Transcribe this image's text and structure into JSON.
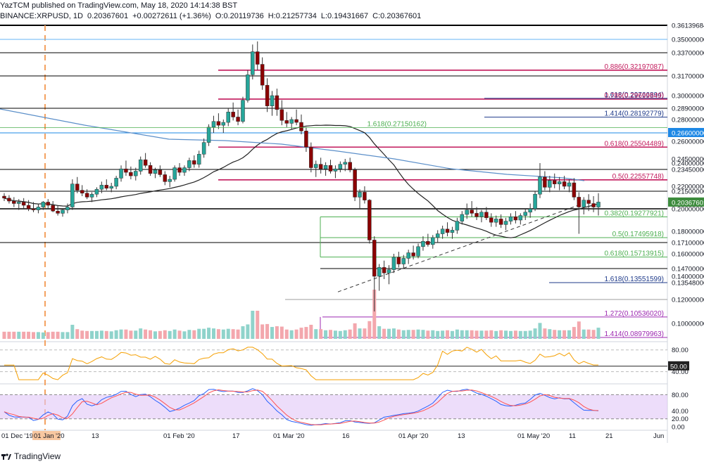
{
  "header": {
    "line1": "YazTCM published on TradingView.com, May 18, 2020 14:14:38 BST",
    "symbol": "BINANCE:XRPUSD, 1D",
    "last": "0.20367601",
    "change": "+0.00272611 (+1.36%)",
    "o": "O:0.20119736",
    "h": "H:0.21257734",
    "l": "L:0.19431667",
    "c": "C:0.20367601"
  },
  "footer": {
    "brand": "TradingView"
  },
  "colors": {
    "up": "#26a69a",
    "down": "#8b0000",
    "fibRed": "#c2185b",
    "fibGreen": "#4caf50",
    "fibBlue": "#1e3a8a",
    "rsi": "#f59f00",
    "stochK": "#2962ff",
    "stochD": "#ff5252",
    "stochBg": "#e1c6f7"
  },
  "chart_data": {
    "type": "candlestick",
    "price_axis": {
      "range": [
        0.09,
        0.365
      ],
      "ticks": [
        "0.35000000",
        "0.33700000",
        "0.31700000",
        "0.30000000",
        "0.28900000",
        "0.28000000",
        "0.26600000",
        "0.26000000",
        "0.24500000",
        "0.24000000",
        "0.23450000",
        "0.22000000",
        "0.21500000",
        "0.20367601",
        "0.20000000",
        "0.18000000",
        "0.17100000",
        "0.16000000",
        "0.14700000",
        "0.14000000",
        "0.13548006",
        "0.12000000",
        "0.10000000",
        "0.36139684"
      ]
    },
    "time_axis": [
      "01 Dec '19",
      "01 Jan '20",
      "13",
      "01 Feb '20",
      "17",
      "01 Mar '20",
      "16",
      "01 Apr '20",
      "13",
      "01 May '20",
      "11",
      "21",
      "Jun"
    ],
    "horizontal_levels": [
      {
        "value": 0.35,
        "color": "#64b5f6"
      },
      {
        "value": 0.337,
        "color": "#000000"
      },
      {
        "value": 0.317,
        "color": "#000000"
      },
      {
        "value": 0.289,
        "color": "#000000"
      },
      {
        "value": 0.266,
        "color": "#1e88e5"
      },
      {
        "value": 0.2345,
        "color": "#000000"
      },
      {
        "value": 0.215,
        "color": "#000000"
      },
      {
        "value": 0.2,
        "color": "#000000"
      },
      {
        "value": 0.171,
        "color": "#000000"
      },
      {
        "value": 0.147,
        "color": "#000000"
      },
      {
        "value": 0.12,
        "color": "#9e9e9e"
      }
    ],
    "fib_levels": [
      {
        "ratio": "0.886",
        "value": "0.32197087",
        "color": "#c2185b"
      },
      {
        "ratio": "1.618",
        "value": "0.29766894",
        "color": "#1e3a8a"
      },
      {
        "ratio": "0.786",
        "value": "0.29699849",
        "color": "#c2185b"
      },
      {
        "ratio": "1.414",
        "value": "0.28192779",
        "color": "#1e3a8a"
      },
      {
        "ratio": "1.618",
        "value": "0.27150162",
        "color": "#4caf50"
      },
      {
        "ratio": "0.618",
        "value": "0.25504489",
        "color": "#c2185b"
      },
      {
        "ratio": "0.5",
        "value": "0.22557748",
        "color": "#c2185b"
      },
      {
        "ratio": "0.382",
        "value": "0.19277921",
        "color": "#4caf50"
      },
      {
        "ratio": "0.5",
        "value": "0.17495918",
        "color": "#4caf50"
      },
      {
        "ratio": "0.618",
        "value": "0.15713915",
        "color": "#4caf50"
      },
      {
        "ratio": "1.618",
        "value": "0.13551599",
        "color": "#1e3a8a"
      },
      {
        "ratio": "1.272",
        "value": "0.10536020",
        "color": "#9c27b0"
      },
      {
        "ratio": "1.414",
        "value": "0.08979963",
        "color": "#9c27b0"
      }
    ],
    "candles": [
      [
        0.21,
        0.213,
        0.205,
        0.208
      ],
      [
        0.208,
        0.211,
        0.203,
        0.205
      ],
      [
        0.205,
        0.209,
        0.201,
        0.203
      ],
      [
        0.203,
        0.207,
        0.199,
        0.204
      ],
      [
        0.204,
        0.208,
        0.2,
        0.202
      ],
      [
        0.202,
        0.206,
        0.198,
        0.2
      ],
      [
        0.2,
        0.204,
        0.197,
        0.199
      ],
      [
        0.199,
        0.203,
        0.196,
        0.201
      ],
      [
        0.201,
        0.205,
        0.199,
        0.204
      ],
      [
        0.204,
        0.207,
        0.2,
        0.202
      ],
      [
        0.202,
        0.205,
        0.197,
        0.198
      ],
      [
        0.198,
        0.202,
        0.194,
        0.196
      ],
      [
        0.196,
        0.2,
        0.193,
        0.199
      ],
      [
        0.199,
        0.203,
        0.196,
        0.201
      ],
      [
        0.201,
        0.226,
        0.199,
        0.222
      ],
      [
        0.222,
        0.228,
        0.213,
        0.216
      ],
      [
        0.216,
        0.221,
        0.21,
        0.213
      ],
      [
        0.213,
        0.217,
        0.207,
        0.209
      ],
      [
        0.209,
        0.214,
        0.204,
        0.212
      ],
      [
        0.212,
        0.219,
        0.209,
        0.217
      ],
      [
        0.217,
        0.224,
        0.213,
        0.221
      ],
      [
        0.221,
        0.226,
        0.216,
        0.218
      ],
      [
        0.218,
        0.223,
        0.214,
        0.22
      ],
      [
        0.22,
        0.229,
        0.217,
        0.227
      ],
      [
        0.227,
        0.238,
        0.224,
        0.235
      ],
      [
        0.235,
        0.243,
        0.229,
        0.232
      ],
      [
        0.232,
        0.237,
        0.226,
        0.229
      ],
      [
        0.229,
        0.236,
        0.225,
        0.233
      ],
      [
        0.233,
        0.247,
        0.23,
        0.244
      ],
      [
        0.244,
        0.25,
        0.236,
        0.238
      ],
      [
        0.238,
        0.241,
        0.229,
        0.231
      ],
      [
        0.231,
        0.236,
        0.227,
        0.234
      ],
      [
        0.234,
        0.238,
        0.228,
        0.23
      ],
      [
        0.23,
        0.233,
        0.221,
        0.224
      ],
      [
        0.224,
        0.229,
        0.219,
        0.226
      ],
      [
        0.226,
        0.238,
        0.224,
        0.236
      ],
      [
        0.236,
        0.24,
        0.229,
        0.232
      ],
      [
        0.232,
        0.238,
        0.229,
        0.236
      ],
      [
        0.236,
        0.246,
        0.233,
        0.243
      ],
      [
        0.243,
        0.248,
        0.236,
        0.239
      ],
      [
        0.239,
        0.252,
        0.236,
        0.249
      ],
      [
        0.249,
        0.262,
        0.246,
        0.259
      ],
      [
        0.259,
        0.275,
        0.256,
        0.272
      ],
      [
        0.272,
        0.283,
        0.266,
        0.278
      ],
      [
        0.278,
        0.285,
        0.27,
        0.274
      ],
      [
        0.274,
        0.28,
        0.266,
        0.277
      ],
      [
        0.277,
        0.289,
        0.273,
        0.286
      ],
      [
        0.286,
        0.294,
        0.279,
        0.282
      ],
      [
        0.282,
        0.288,
        0.274,
        0.278
      ],
      [
        0.278,
        0.299,
        0.276,
        0.296
      ],
      [
        0.296,
        0.322,
        0.294,
        0.318
      ],
      [
        0.318,
        0.345,
        0.314,
        0.338
      ],
      [
        0.338,
        0.348,
        0.322,
        0.327
      ],
      [
        0.327,
        0.333,
        0.305,
        0.309
      ],
      [
        0.309,
        0.315,
        0.286,
        0.291
      ],
      [
        0.291,
        0.304,
        0.283,
        0.3
      ],
      [
        0.3,
        0.306,
        0.283,
        0.288
      ],
      [
        0.288,
        0.296,
        0.274,
        0.279
      ],
      [
        0.279,
        0.286,
        0.272,
        0.276
      ],
      [
        0.276,
        0.282,
        0.27,
        0.28
      ],
      [
        0.28,
        0.288,
        0.274,
        0.277
      ],
      [
        0.277,
        0.284,
        0.265,
        0.268
      ],
      [
        0.268,
        0.272,
        0.251,
        0.255
      ],
      [
        0.255,
        0.259,
        0.232,
        0.236
      ],
      [
        0.236,
        0.243,
        0.228,
        0.239
      ],
      [
        0.239,
        0.246,
        0.231,
        0.235
      ],
      [
        0.235,
        0.241,
        0.229,
        0.238
      ],
      [
        0.238,
        0.244,
        0.231,
        0.233
      ],
      [
        0.233,
        0.238,
        0.227,
        0.235
      ],
      [
        0.235,
        0.242,
        0.232,
        0.239
      ],
      [
        0.239,
        0.245,
        0.233,
        0.241
      ],
      [
        0.241,
        0.246,
        0.232,
        0.234
      ],
      [
        0.234,
        0.236,
        0.205,
        0.209
      ],
      [
        0.209,
        0.217,
        0.2,
        0.214
      ],
      [
        0.214,
        0.22,
        0.203,
        0.206
      ],
      [
        0.206,
        0.207,
        0.17,
        0.173
      ],
      [
        0.173,
        0.176,
        0.11,
        0.14
      ],
      [
        0.14,
        0.151,
        0.128,
        0.148
      ],
      [
        0.148,
        0.154,
        0.138,
        0.143
      ],
      [
        0.143,
        0.15,
        0.134,
        0.146
      ],
      [
        0.146,
        0.16,
        0.143,
        0.157
      ],
      [
        0.157,
        0.162,
        0.148,
        0.151
      ],
      [
        0.151,
        0.159,
        0.147,
        0.156
      ],
      [
        0.156,
        0.164,
        0.151,
        0.161
      ],
      [
        0.161,
        0.168,
        0.155,
        0.158
      ],
      [
        0.158,
        0.17,
        0.156,
        0.167
      ],
      [
        0.167,
        0.176,
        0.163,
        0.172
      ],
      [
        0.172,
        0.178,
        0.167,
        0.169
      ],
      [
        0.169,
        0.177,
        0.165,
        0.175
      ],
      [
        0.175,
        0.181,
        0.171,
        0.178
      ],
      [
        0.178,
        0.185,
        0.174,
        0.182
      ],
      [
        0.182,
        0.188,
        0.176,
        0.179
      ],
      [
        0.179,
        0.184,
        0.174,
        0.181
      ],
      [
        0.181,
        0.192,
        0.178,
        0.189
      ],
      [
        0.189,
        0.198,
        0.186,
        0.195
      ],
      [
        0.195,
        0.203,
        0.191,
        0.199
      ],
      [
        0.199,
        0.205,
        0.193,
        0.196
      ],
      [
        0.196,
        0.201,
        0.19,
        0.193
      ],
      [
        0.193,
        0.199,
        0.188,
        0.197
      ],
      [
        0.197,
        0.201,
        0.19,
        0.192
      ],
      [
        0.192,
        0.196,
        0.184,
        0.188
      ],
      [
        0.188,
        0.194,
        0.184,
        0.191
      ],
      [
        0.191,
        0.195,
        0.183,
        0.186
      ],
      [
        0.186,
        0.192,
        0.181,
        0.189
      ],
      [
        0.189,
        0.196,
        0.186,
        0.193
      ],
      [
        0.193,
        0.198,
        0.187,
        0.19
      ],
      [
        0.19,
        0.196,
        0.186,
        0.194
      ],
      [
        0.194,
        0.2,
        0.19,
        0.197
      ],
      [
        0.197,
        0.203,
        0.192,
        0.2
      ],
      [
        0.2,
        0.215,
        0.198,
        0.212
      ],
      [
        0.212,
        0.24,
        0.208,
        0.228
      ],
      [
        0.228,
        0.233,
        0.216,
        0.219
      ],
      [
        0.219,
        0.229,
        0.214,
        0.225
      ],
      [
        0.225,
        0.231,
        0.218,
        0.222
      ],
      [
        0.222,
        0.228,
        0.216,
        0.224
      ],
      [
        0.224,
        0.229,
        0.217,
        0.22
      ],
      [
        0.22,
        0.226,
        0.214,
        0.223
      ],
      [
        0.223,
        0.227,
        0.206,
        0.209
      ],
      [
        0.209,
        0.214,
        0.178,
        0.201
      ],
      [
        0.201,
        0.209,
        0.195,
        0.206
      ],
      [
        0.206,
        0.212,
        0.198,
        0.203
      ],
      [
        0.203,
        0.21,
        0.197,
        0.201
      ],
      [
        0.201,
        0.213,
        0.194,
        0.204
      ]
    ],
    "ma_dark": {
      "name": "",
      "color": "#222222"
    },
    "ma_blue": {
      "name": "",
      "color": "#5b8fc9"
    },
    "rsi": {
      "ticks": [
        "80.00",
        "50.00",
        "40.00"
      ],
      "range": [
        20,
        90
      ],
      "last": "50.00"
    },
    "stoch": {
      "ticks": [
        "80.00",
        "40.00",
        "20.00",
        "0.00"
      ],
      "range": [
        -5,
        100
      ]
    }
  }
}
